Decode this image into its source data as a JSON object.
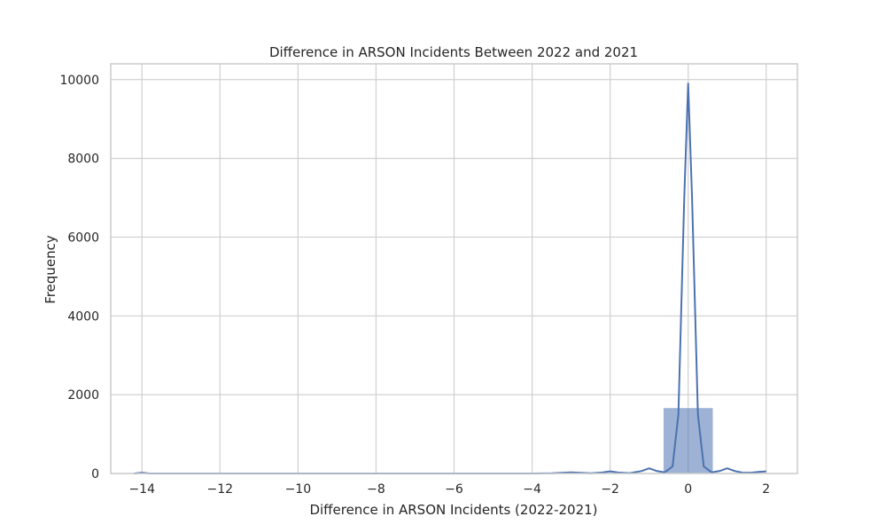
{
  "chart_data": {
    "type": "bar",
    "title": "Difference in ARSON Incidents Between 2022 and 2021",
    "xlabel": "Difference in ARSON Incidents (2022-2021)",
    "ylabel": "Frequency",
    "xlim": [
      -14.8,
      2.8
    ],
    "ylim": [
      0,
      10400
    ],
    "xticks": [
      -14,
      -12,
      -10,
      -8,
      -6,
      -4,
      -2,
      0,
      2
    ],
    "yticks": [
      0,
      2000,
      4000,
      6000,
      8000,
      10000
    ],
    "grid": true,
    "bars": [
      {
        "x0": -14.64,
        "x1": -13.36,
        "value": 3
      },
      {
        "x0": -3.36,
        "x1": -2.64,
        "value": 5
      },
      {
        "x0": -2.36,
        "x1": -1.64,
        "value": 5
      },
      {
        "x0": -0.64,
        "x1": 0.64,
        "value": 1670
      },
      {
        "x0": 1.36,
        "x1": 2.64,
        "value": 6
      }
    ],
    "kde": {
      "x": [
        -14.2,
        -14.0,
        -13.8,
        -13.0,
        -10.0,
        -6.0,
        -4.0,
        -3.5,
        -3.2,
        -3.0,
        -2.8,
        -2.5,
        -2.2,
        -2.0,
        -1.8,
        -1.5,
        -1.2,
        -1.0,
        -0.8,
        -0.6,
        -0.4,
        -0.25,
        -0.1,
        0.0,
        0.1,
        0.25,
        0.4,
        0.6,
        0.8,
        1.0,
        1.2,
        1.4,
        1.6,
        1.8,
        2.0
      ],
      "y": [
        0,
        20,
        0,
        0,
        0,
        0,
        0,
        5,
        20,
        30,
        20,
        5,
        25,
        55,
        25,
        10,
        60,
        130,
        60,
        30,
        180,
        1500,
        7000,
        9900,
        7000,
        1500,
        180,
        30,
        60,
        130,
        60,
        20,
        20,
        40,
        55
      ]
    },
    "colors": {
      "bar": "#4c72b0",
      "kde": "#4c72b0",
      "grid": "#d0d0d0",
      "frame": "#cccccc"
    }
  }
}
